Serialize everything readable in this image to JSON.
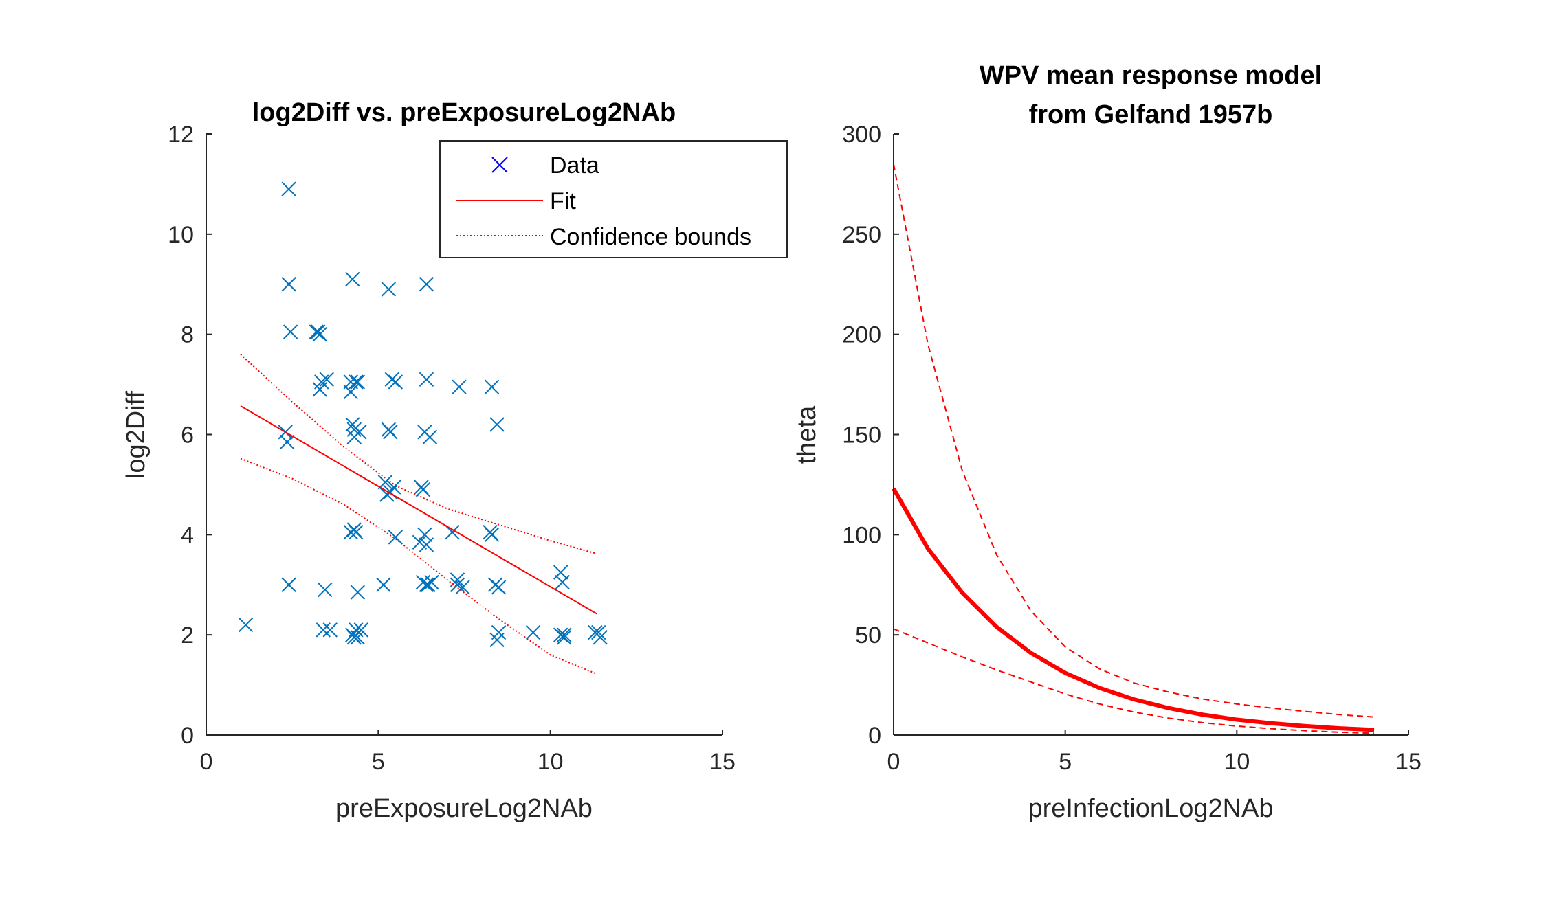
{
  "colors": {
    "data_marker": "#0072BD",
    "legend_marker": "#0000FF",
    "fit": "#FF0000",
    "axis": "#262626"
  },
  "chart_data": [
    {
      "type": "scatter",
      "title": "log2Diff vs. preExposureLog2NAb",
      "xlabel": "preExposureLog2NAb",
      "ylabel": "log2Diff",
      "xlim": [
        0,
        15
      ],
      "ylim": [
        0,
        12
      ],
      "xticks": [
        0,
        5,
        10,
        15
      ],
      "yticks": [
        0,
        2,
        4,
        6,
        8,
        10,
        12
      ],
      "xtick_labels": [
        "0",
        "5",
        "10",
        "15"
      ],
      "ytick_labels": [
        "0",
        "2",
        "4",
        "6",
        "8",
        "10",
        "12"
      ],
      "grid": false,
      "legend_position": "top-right",
      "series": [
        {
          "name": "Data",
          "marker": "x",
          "x": [
            2.4,
            2.4,
            2.45,
            3.2,
            3.3,
            3.25,
            3.35,
            3.5,
            3.3,
            2.3,
            2.35,
            2.4,
            1.15,
            3.45,
            3.4,
            3.6,
            4.25,
            4.2,
            4.35,
            4.2,
            4.4,
            4.25,
            4.3,
            4.45,
            4.3,
            4.35,
            4.2,
            4.3,
            4.4,
            4.35,
            4.5,
            4.25,
            4.4,
            4.3,
            5.3,
            5.4,
            5.5,
            5.3,
            5.35,
            5.2,
            5.35,
            5.45,
            5.25,
            5.5,
            5.15,
            6.4,
            6.4,
            6.35,
            6.5,
            6.25,
            6.3,
            6.35,
            6.2,
            6.4,
            6.3,
            6.45,
            6.55,
            6.4,
            7.35,
            7.15,
            7.3,
            7.45,
            7.3,
            8.3,
            8.25,
            8.3,
            8.45,
            8.4,
            8.5,
            8.5,
            8.45,
            9.5,
            10.3,
            10.35,
            10.4,
            10.3,
            10.4,
            11.3,
            11.45,
            11.4
          ],
          "y": [
            10.9,
            9.0,
            8.05,
            8.05,
            8.0,
            8.05,
            7.05,
            7.1,
            6.9,
            6.05,
            5.85,
            3.0,
            2.2,
            2.9,
            2.1,
            2.1,
            9.1,
            7.05,
            7.05,
            6.85,
            7.05,
            6.2,
            6.1,
            6.05,
            5.95,
            4.05,
            4.05,
            4.1,
            2.85,
            2.1,
            2.1,
            2.0,
            1.95,
            1.95,
            8.9,
            7.1,
            7.05,
            6.1,
            6.05,
            5.05,
            4.85,
            4.95,
            4.8,
            3.95,
            3.0,
            9.0,
            7.1,
            6.05,
            5.95,
            4.95,
            4.9,
            4.0,
            3.85,
            3.8,
            3.05,
            3.0,
            3.05,
            3.0,
            6.95,
            4.05,
            3.0,
            2.95,
            3.1,
            6.95,
            4.05,
            4.0,
            6.2,
            3.0,
            2.95,
            2.05,
            1.9,
            2.05,
            3.25,
            3.05,
            2.0,
            2.0,
            1.95,
            2.05,
            1.95,
            2.05
          ]
        },
        {
          "name": "Fit",
          "x": [
            1.0,
            11.35
          ],
          "y": [
            6.57,
            2.42
          ]
        },
        {
          "name": "Confidence bounds",
          "x": [
            1.0,
            2.5,
            4.0,
            5.5,
            7.0,
            8.5,
            10.0,
            11.35
          ],
          "y": [
            7.6,
            6.65,
            5.75,
            4.98,
            4.52,
            4.2,
            3.88,
            3.62
          ]
        },
        {
          "x": [
            1.0,
            2.5,
            4.0,
            5.5,
            7.0,
            8.5,
            10.0,
            11.35
          ],
          "y": [
            5.52,
            5.12,
            4.6,
            3.92,
            3.1,
            2.32,
            1.6,
            1.22
          ]
        }
      ]
    },
    {
      "type": "line",
      "title": [
        "WPV mean response model",
        "from Gelfand 1957b"
      ],
      "xlabel": "preInfectionLog2NAb",
      "ylabel": "theta",
      "xlim": [
        0,
        15
      ],
      "ylim": [
        0,
        300
      ],
      "xticks": [
        0,
        5,
        10,
        15
      ],
      "yticks": [
        0,
        50,
        100,
        150,
        200,
        250,
        300
      ],
      "xtick_labels": [
        "0",
        "5",
        "10",
        "15"
      ],
      "ytick_labels": [
        "0",
        "50",
        "100",
        "150",
        "200",
        "250",
        "300"
      ],
      "grid": false,
      "series": [
        {
          "style": "solid-thick",
          "x": [
            0,
            1,
            2,
            3,
            4,
            5,
            6,
            7,
            8,
            9,
            10,
            11,
            12,
            13,
            14
          ],
          "y": [
            123,
            93,
            71,
            54,
            41,
            31,
            23.5,
            17.8,
            13.5,
            10.2,
            7.7,
            5.9,
            4.5,
            3.4,
            2.6
          ]
        },
        {
          "style": "dashed",
          "x": [
            0,
            1,
            2,
            3,
            4,
            5,
            6,
            7,
            8,
            9,
            10,
            11,
            12,
            13,
            14
          ],
          "y": [
            285,
            195,
            132,
            90,
            62,
            44,
            33,
            26,
            21.5,
            18,
            15.5,
            13.5,
            11.8,
            10.2,
            9.0
          ]
        },
        {
          "style": "dashed",
          "x": [
            0,
            1,
            2,
            3,
            4,
            5,
            6,
            7,
            8,
            9,
            10,
            11,
            12,
            13,
            14
          ],
          "y": [
            53,
            46,
            39,
            32.5,
            26.5,
            20.5,
            15.5,
            11.5,
            8.5,
            6.2,
            4.5,
            3.2,
            2.2,
            1.4,
            0.9
          ]
        }
      ]
    }
  ]
}
